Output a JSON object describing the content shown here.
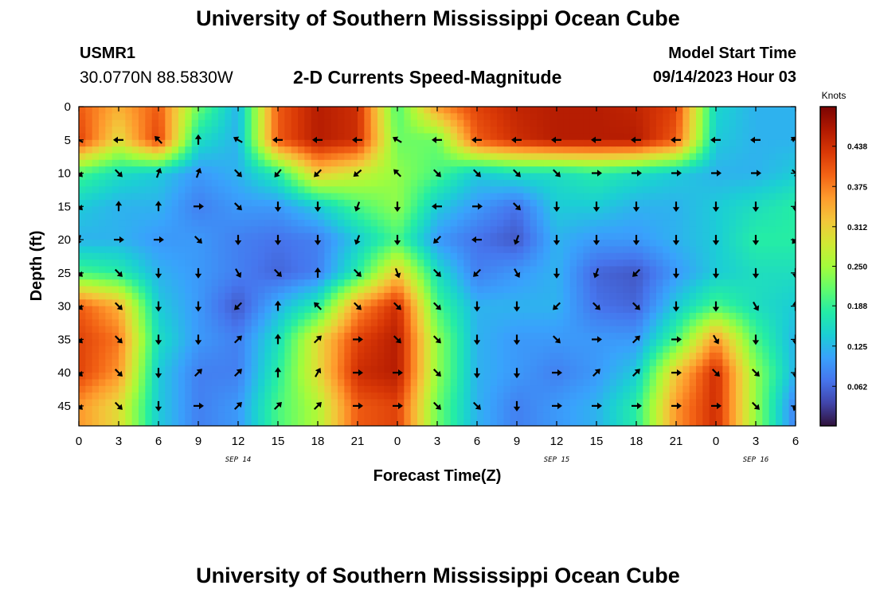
{
  "header": {
    "title": "University of Southern Mississippi Ocean Cube",
    "station": "USMR1",
    "coordinates": "30.0770N  88.5830W",
    "subtitle": "2-D Currents Speed-Magnitude",
    "model_start_label": "Model Start Time",
    "model_start_value": "09/14/2023 Hour 03"
  },
  "footer": {
    "title": "University of Southern Mississippi Ocean Cube"
  },
  "chart_data": {
    "type": "heatmap",
    "xlabel": "Forecast Time(Z)",
    "ylabel": "Depth (ft)",
    "x_tick_labels": [
      "0",
      "3",
      "6",
      "9",
      "12",
      "15",
      "18",
      "21",
      "0",
      "3",
      "6",
      "9",
      "12",
      "15",
      "18",
      "21",
      "0",
      "3",
      "6"
    ],
    "date_labels": [
      {
        "label": "SEP 14",
        "tick_index": 4
      },
      {
        "label": "SEP 15",
        "tick_index": 12
      },
      {
        "label": "SEP 16",
        "tick_index": 17
      }
    ],
    "y_ticks": [
      0,
      5,
      10,
      15,
      20,
      25,
      30,
      35,
      40,
      45
    ],
    "ylim": [
      0,
      48
    ],
    "xlim_hours": [
      0,
      54
    ],
    "colorbar": {
      "unit": "Knots",
      "ticks": [
        0.062,
        0.125,
        0.188,
        0.25,
        0.312,
        0.375,
        0.438
      ],
      "range": [
        0,
        0.5
      ],
      "colors": [
        "#30123b",
        "#4145ab",
        "#4675ed",
        "#39a2fc",
        "#1bcfd4",
        "#24eca6",
        "#61fc6c",
        "#a4fc3b",
        "#d1e834",
        "#f3c63a",
        "#fe9b2d",
        "#f36315",
        "#d93806",
        "#b11901",
        "#7a0403"
      ]
    },
    "speed_field": {
      "rows_depth_ft": [
        0,
        5,
        10,
        15,
        20,
        25,
        30,
        35,
        40,
        45
      ],
      "columns_hour": [
        0,
        3,
        6,
        9,
        12,
        15,
        18,
        21,
        24,
        27,
        30,
        33,
        36,
        39,
        42,
        45,
        48,
        51,
        54
      ],
      "values": [
        [
          0.4,
          0.34,
          0.4,
          0.22,
          0.12,
          0.4,
          0.46,
          0.44,
          0.2,
          0.36,
          0.42,
          0.45,
          0.46,
          0.46,
          0.45,
          0.42,
          0.15,
          0.12,
          0.12
        ],
        [
          0.42,
          0.3,
          0.42,
          0.16,
          0.12,
          0.4,
          0.46,
          0.44,
          0.22,
          0.22,
          0.4,
          0.44,
          0.46,
          0.46,
          0.46,
          0.4,
          0.14,
          0.12,
          0.12
        ],
        [
          0.2,
          0.16,
          0.14,
          0.1,
          0.12,
          0.18,
          0.32,
          0.28,
          0.24,
          0.2,
          0.14,
          0.16,
          0.16,
          0.18,
          0.16,
          0.14,
          0.12,
          0.12,
          0.14
        ],
        [
          0.14,
          0.12,
          0.12,
          0.08,
          0.1,
          0.1,
          0.14,
          0.2,
          0.24,
          0.14,
          0.1,
          0.07,
          0.14,
          0.14,
          0.12,
          0.12,
          0.14,
          0.16,
          0.18
        ],
        [
          0.12,
          0.12,
          0.1,
          0.1,
          0.08,
          0.07,
          0.08,
          0.14,
          0.2,
          0.1,
          0.07,
          0.05,
          0.12,
          0.1,
          0.1,
          0.12,
          0.14,
          0.18,
          0.18
        ],
        [
          0.2,
          0.18,
          0.12,
          0.1,
          0.08,
          0.06,
          0.08,
          0.18,
          0.32,
          0.16,
          0.08,
          0.1,
          0.12,
          0.06,
          0.05,
          0.1,
          0.14,
          0.16,
          0.16
        ],
        [
          0.4,
          0.34,
          0.14,
          0.1,
          0.05,
          0.12,
          0.18,
          0.36,
          0.44,
          0.2,
          0.12,
          0.12,
          0.12,
          0.07,
          0.06,
          0.14,
          0.2,
          0.16,
          0.14
        ],
        [
          0.42,
          0.38,
          0.16,
          0.1,
          0.08,
          0.16,
          0.3,
          0.42,
          0.46,
          0.24,
          0.12,
          0.1,
          0.1,
          0.1,
          0.1,
          0.2,
          0.36,
          0.2,
          0.12
        ],
        [
          0.42,
          0.36,
          0.14,
          0.08,
          0.08,
          0.18,
          0.3,
          0.44,
          0.46,
          0.24,
          0.12,
          0.1,
          0.08,
          0.1,
          0.14,
          0.32,
          0.44,
          0.24,
          0.12
        ],
        [
          0.36,
          0.3,
          0.14,
          0.08,
          0.1,
          0.2,
          0.26,
          0.4,
          0.42,
          0.22,
          0.12,
          0.08,
          0.1,
          0.12,
          0.18,
          0.36,
          0.44,
          0.24,
          0.08
        ]
      ]
    },
    "vector_grid": {
      "columns_hour": [
        0,
        3,
        6,
        9,
        12,
        15,
        18,
        21,
        24,
        27,
        30,
        33,
        36,
        39,
        42,
        45,
        48,
        51,
        54
      ],
      "rows_depth_ft": [
        5,
        10,
        15,
        20,
        25,
        30,
        35,
        40,
        45
      ],
      "directions_deg_clockwise_from_north": [
        [
          300,
          270,
          315,
          0,
          300,
          270,
          270,
          270,
          300,
          270,
          270,
          270,
          270,
          270,
          270,
          270,
          270,
          270,
          300
        ],
        [
          135,
          135,
          20,
          20,
          135,
          220,
          225,
          230,
          315,
          135,
          135,
          135,
          135,
          90,
          90,
          90,
          90,
          90,
          135
        ],
        [
          135,
          0,
          0,
          90,
          135,
          180,
          180,
          200,
          180,
          270,
          90,
          135,
          180,
          180,
          180,
          180,
          180,
          180,
          180
        ],
        [
          200,
          90,
          90,
          135,
          180,
          180,
          180,
          200,
          180,
          225,
          270,
          200,
          180,
          180,
          180,
          180,
          180,
          180,
          220
        ],
        [
          135,
          135,
          180,
          180,
          150,
          135,
          0,
          135,
          160,
          135,
          225,
          150,
          180,
          200,
          225,
          180,
          180,
          180,
          180
        ],
        [
          135,
          135,
          180,
          180,
          225,
          0,
          315,
          135,
          135,
          135,
          180,
          180,
          225,
          135,
          135,
          180,
          180,
          150,
          0
        ],
        [
          135,
          135,
          180,
          180,
          45,
          0,
          45,
          90,
          135,
          135,
          180,
          180,
          135,
          90,
          45,
          90,
          150,
          180,
          180
        ],
        [
          135,
          135,
          180,
          45,
          45,
          0,
          30,
          90,
          90,
          135,
          180,
          180,
          90,
          45,
          45,
          90,
          135,
          135,
          180
        ],
        [
          135,
          135,
          180,
          90,
          45,
          45,
          45,
          90,
          90,
          135,
          135,
          180,
          90,
          90,
          90,
          90,
          90,
          135,
          200
        ]
      ]
    }
  }
}
